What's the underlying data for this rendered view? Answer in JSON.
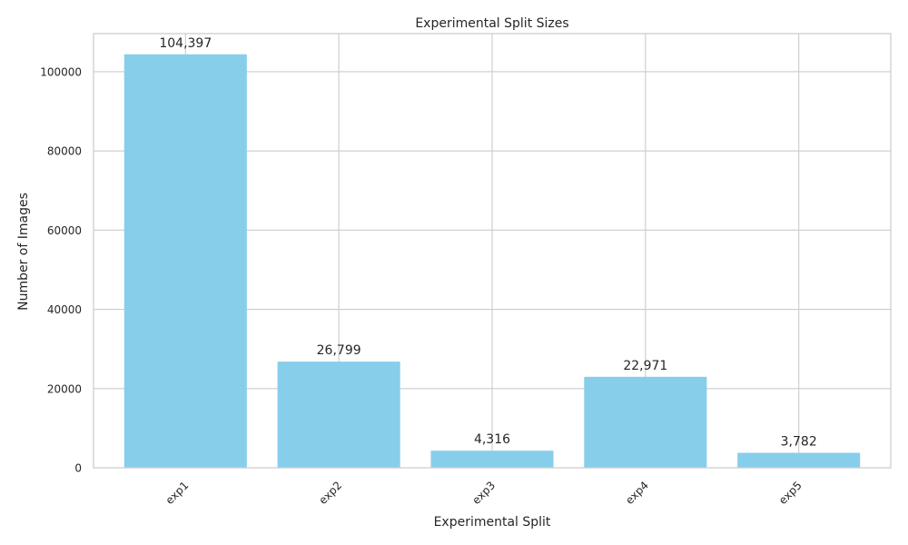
{
  "chart_data": {
    "type": "bar",
    "title": "Experimental Split Sizes",
    "xlabel": "Experimental Split",
    "ylabel": "Number of Images",
    "categories": [
      "exp1",
      "exp2",
      "exp3",
      "exp4",
      "exp5"
    ],
    "values": [
      104397,
      26799,
      4316,
      22971,
      3782
    ],
    "data_labels": [
      "104,397",
      "26,799",
      "4,316",
      "22,971",
      "3,782"
    ],
    "ylim": [
      0,
      109617
    ],
    "yticks": [
      0,
      20000,
      40000,
      60000,
      80000,
      100000
    ],
    "ytick_labels": [
      "0",
      "20000",
      "40000",
      "60000",
      "80000",
      "100000"
    ],
    "xtick_rotation": 45,
    "grid": true,
    "bar_color": "#87CEEB",
    "grid_color": "#cccccc",
    "spine_color": "#cccccc",
    "text_color": "#262626",
    "background": "#ffffff"
  }
}
